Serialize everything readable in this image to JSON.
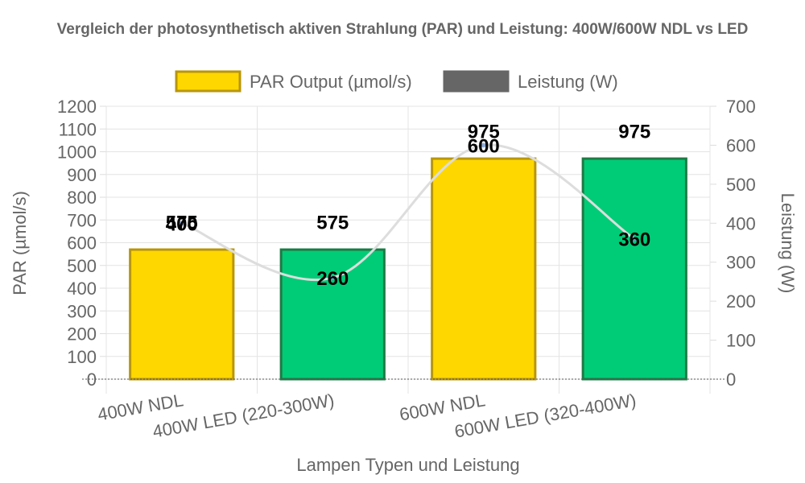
{
  "chart_data": {
    "type": "bar",
    "title": "Vergleich der photosynthetisch aktiven Strahlung (PAR) und Leistung: 400W/600W NDL vs LED",
    "xlabel": "Lampen Typen und Leistung",
    "ylabel": "PAR (µmol/s)",
    "y2label": "Leistung (W)",
    "categories": [
      "400W NDL",
      "400W LED (220-300W)",
      "600W NDL",
      "600W LED (320-400W)"
    ],
    "ylim": [
      0,
      1200
    ],
    "y_ticks": [
      "0",
      "100",
      "200",
      "300",
      "400",
      "500",
      "600",
      "700",
      "800",
      "900",
      "1000",
      "1100",
      "1200"
    ],
    "y2lim": [
      0,
      700
    ],
    "y2_ticks": [
      "0",
      "100",
      "200",
      "300",
      "400",
      "500",
      "600",
      "700"
    ],
    "grid": true,
    "legend_position": "top",
    "series": [
      {
        "name": "PAR Output (µmol/s)",
        "type": "bar",
        "axis": "left",
        "values": [
          575,
          575,
          975,
          975
        ],
        "bar_fill_colors": [
          "#FFD700",
          "#00CC77",
          "#FFD700",
          "#00CC77"
        ],
        "bar_border_colors": [
          "#B8960B",
          "#1E7A45",
          "#B8960B",
          "#1E7A45"
        ],
        "value_labels": [
          "575",
          "575",
          "975",
          "975"
        ]
      },
      {
        "name": "Leistung (W)",
        "type": "line",
        "axis": "right",
        "values": [
          400,
          260,
          600,
          360
        ],
        "line_color": "#DDDDDD",
        "legend_color": "#666666",
        "value_labels": [
          "400",
          "260",
          "600",
          "360"
        ]
      }
    ]
  }
}
